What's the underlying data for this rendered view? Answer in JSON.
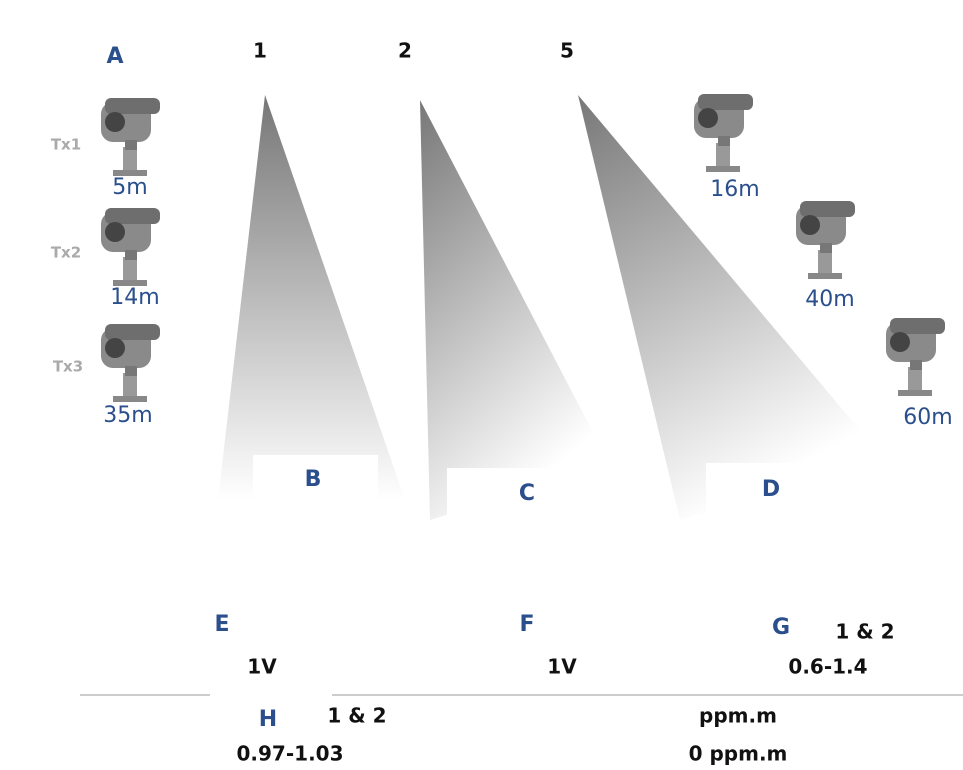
{
  "header": {
    "label": "A",
    "beams": [
      "1",
      "2",
      "5"
    ]
  },
  "left_transmitters": [
    {
      "name": "Tx1",
      "distance": "5m"
    },
    {
      "name": "Tx2",
      "distance": "14m"
    },
    {
      "name": "Tx3",
      "distance": "35m"
    }
  ],
  "right_transmitters": [
    {
      "distance": "16m"
    },
    {
      "distance": "40m"
    },
    {
      "distance": "60m"
    }
  ],
  "zones": [
    "B",
    "C",
    "D"
  ],
  "readouts": [
    {
      "label": "E",
      "value": "1V"
    },
    {
      "label": "F",
      "value": "1V"
    },
    {
      "label": "G",
      "sub": "1 & 2",
      "value": "0.6-1.4"
    },
    {
      "label": "H",
      "sub": "1 & 2",
      "value": "0.97-1.03"
    },
    {
      "unit": "ppm.m",
      "value": "0 ppm.m"
    }
  ]
}
